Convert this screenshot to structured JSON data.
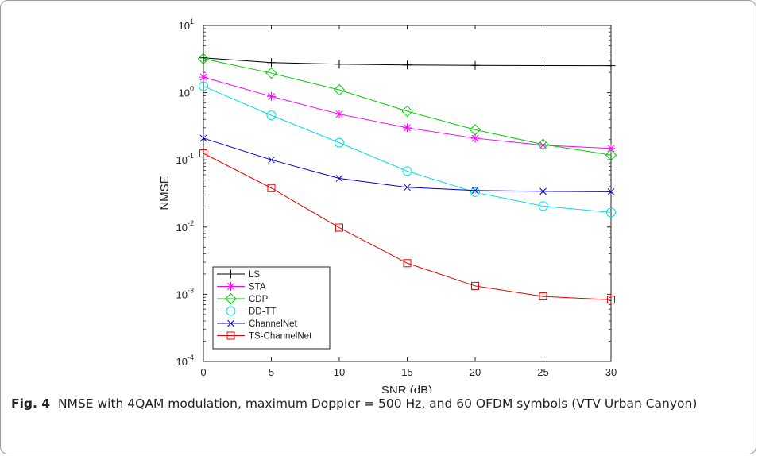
{
  "caption": {
    "label": "Fig. 4",
    "text": "NMSE with 4QAM modulation, maximum Doppler = 500 Hz, and 60 OFDM symbols (VTV Urban Canyon)"
  },
  "chart_data": {
    "type": "line",
    "xlabel": "SNR (dB)",
    "ylabel": "NMSE",
    "xlim": [
      0,
      30
    ],
    "ylim": [
      0.0001,
      10
    ],
    "yscale": "log",
    "grid": false,
    "legend_position": "bottom-left",
    "x": [
      0,
      5,
      10,
      15,
      20,
      25,
      30
    ],
    "xticks": [
      "0",
      "5",
      "10",
      "15",
      "20",
      "25",
      "30"
    ],
    "yticks": [
      {
        "base": "10",
        "exp": "1",
        "value": 10
      },
      {
        "base": "10",
        "exp": "0",
        "value": 1
      },
      {
        "base": "10",
        "exp": "-1",
        "value": 0.1
      },
      {
        "base": "10",
        "exp": "-2",
        "value": 0.01
      },
      {
        "base": "10",
        "exp": "-3",
        "value": 0.001
      },
      {
        "base": "10",
        "exp": "-4",
        "value": 0.0001
      }
    ],
    "series": [
      {
        "name": "LS",
        "color": "#000000",
        "marker": "plus",
        "values": [
          3.3,
          2.8,
          2.65,
          2.58,
          2.55,
          2.53,
          2.52
        ]
      },
      {
        "name": "STA",
        "color": "#ff00ff",
        "marker": "asterisk",
        "values": [
          1.7,
          0.88,
          0.48,
          0.3,
          0.21,
          0.165,
          0.148
        ]
      },
      {
        "name": "CDP",
        "color": "#00cc00",
        "marker": "diamond",
        "values": [
          3.2,
          1.95,
          1.1,
          0.53,
          0.28,
          0.17,
          0.118
        ]
      },
      {
        "name": "DD-TT",
        "color": "#00e0e0",
        "marker": "circle",
        "values": [
          1.25,
          0.46,
          0.18,
          0.068,
          0.033,
          0.0205,
          0.0165
        ]
      },
      {
        "name": "ChannelNet",
        "color": "#0000cc",
        "marker": "x",
        "values": [
          0.21,
          0.1,
          0.053,
          0.039,
          0.035,
          0.034,
          0.0335
        ]
      },
      {
        "name": "TS-ChannelNet",
        "color": "#ee0000",
        "marker": "square",
        "values": [
          0.125,
          0.038,
          0.0098,
          0.0029,
          0.00133,
          0.00093,
          0.00083
        ]
      }
    ]
  }
}
